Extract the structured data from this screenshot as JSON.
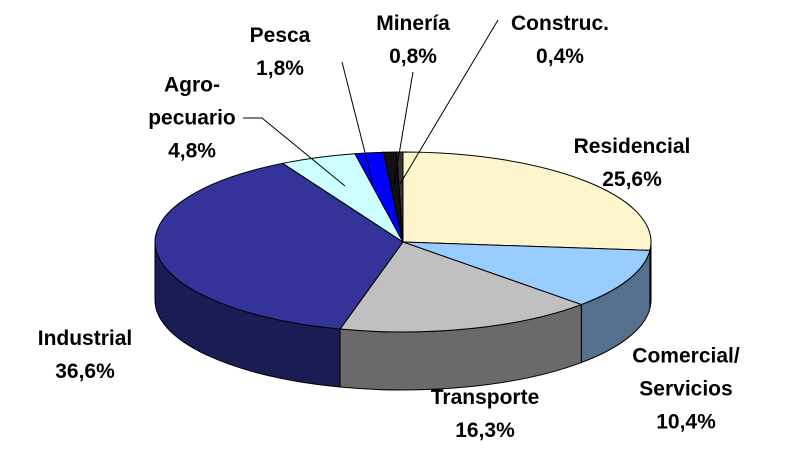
{
  "chart_data": {
    "type": "pie3d",
    "categories": [
      "Residencial",
      "Comercial/\nServicios",
      "Transporte",
      "Industrial",
      "Agro-\npecuario",
      "Pesca",
      "Minería",
      "Construc."
    ],
    "values": [
      25.6,
      10.4,
      16.3,
      36.6,
      4.8,
      1.8,
      0.8,
      0.4
    ],
    "value_labels": [
      "25,6%",
      "10,4%",
      "16,3%",
      "36,6%",
      "4,8%",
      "1,8%",
      "0,8%",
      "0,4%"
    ],
    "colors": [
      "#fff5cc",
      "#99ccff",
      "#c0c0c0",
      "#333399",
      "#ccffff",
      "#0000ff",
      "#111111",
      "#333333"
    ]
  }
}
